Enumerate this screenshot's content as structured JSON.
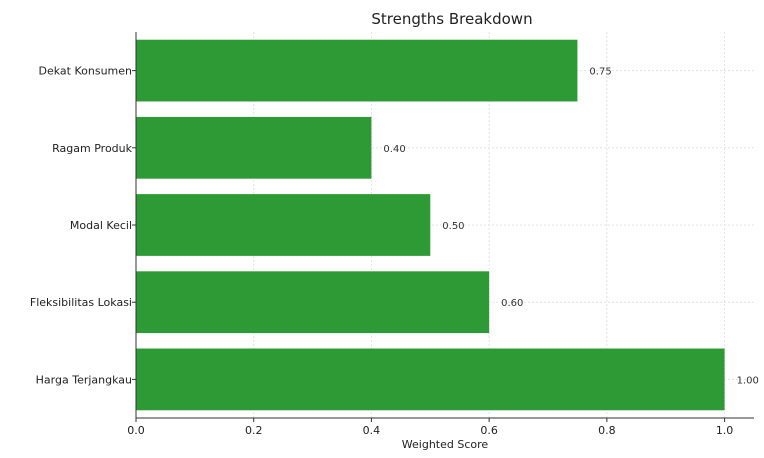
{
  "chart_data": {
    "type": "bar",
    "orientation": "horizontal",
    "title": "Strengths Breakdown",
    "xlabel": "Weighted Score",
    "ylabel": "",
    "categories": [
      "Dekat Konsumen",
      "Ragam Produk",
      "Modal Kecil",
      "Fleksibilitas Lokasi",
      "Harga Terjangkau"
    ],
    "values": [
      0.75,
      0.4,
      0.5,
      0.6,
      1.0
    ],
    "data_labels": [
      "0.75",
      "0.40",
      "0.50",
      "0.60",
      "1.00"
    ],
    "xlim": [
      0,
      1.05
    ],
    "xticks": [
      0.0,
      0.2,
      0.4,
      0.6,
      0.8,
      1.0
    ],
    "xtick_labels": [
      "0.0",
      "0.2",
      "0.4",
      "0.6",
      "0.8",
      "1.0"
    ],
    "grid": true,
    "bar_color": "#2e9a35",
    "grid_color": "#e3e3e3",
    "axis_color": "#333333"
  }
}
